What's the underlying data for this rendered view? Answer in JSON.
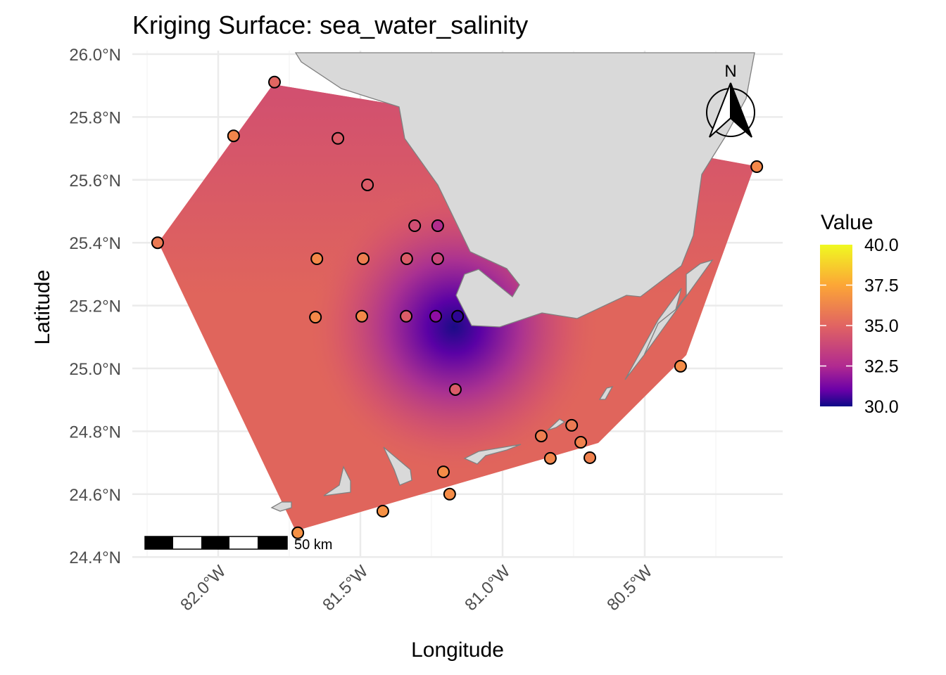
{
  "chart_data": {
    "type": "heatmap",
    "title": "Kriging Surface: sea_water_salinity",
    "xlabel": "Longitude",
    "ylabel": "Latitude",
    "xlim": [
      -82.25,
      -80.02
    ],
    "ylim": [
      24.4,
      26.0
    ],
    "x_ticks": [
      {
        "value": -82.0,
        "label": "82.0°W"
      },
      {
        "value": -81.5,
        "label": "81.5°W"
      },
      {
        "value": -81.0,
        "label": "81.0°W"
      },
      {
        "value": -80.5,
        "label": "80.5°W"
      }
    ],
    "y_ticks": [
      {
        "value": 26.0,
        "label": "26.0°N"
      },
      {
        "value": 25.8,
        "label": "25.8°N"
      },
      {
        "value": 25.6,
        "label": "25.6°N"
      },
      {
        "value": 25.4,
        "label": "25.4°N"
      },
      {
        "value": 25.2,
        "label": "25.2°N"
      },
      {
        "value": 25.0,
        "label": "25.0°N"
      },
      {
        "value": 24.8,
        "label": "24.8°N"
      },
      {
        "value": 24.6,
        "label": "24.6°N"
      },
      {
        "value": 24.4,
        "label": "24.4°N"
      }
    ],
    "grid": true,
    "legend": {
      "title": "Value",
      "position": "right",
      "colormap": "plasma",
      "range": [
        30.0,
        40.0
      ],
      "ticks": [
        "40.0",
        "37.5",
        "35.0",
        "32.5",
        "30.0"
      ]
    },
    "points": [
      {
        "lon": -81.802,
        "lat": 25.911,
        "value": 35.3
      },
      {
        "lon": -81.946,
        "lat": 25.74,
        "value": 36.2
      },
      {
        "lon": -81.579,
        "lat": 25.732,
        "value": 35.0
      },
      {
        "lon": -81.475,
        "lat": 25.584,
        "value": 35.0
      },
      {
        "lon": -82.213,
        "lat": 25.4,
        "value": 35.9
      },
      {
        "lon": -81.309,
        "lat": 25.454,
        "value": 34.6
      },
      {
        "lon": -81.228,
        "lat": 25.454,
        "value": 33.6
      },
      {
        "lon": -81.653,
        "lat": 25.349,
        "value": 36.3
      },
      {
        "lon": -81.49,
        "lat": 25.349,
        "value": 36.0
      },
      {
        "lon": -81.337,
        "lat": 25.349,
        "value": 35.0
      },
      {
        "lon": -81.228,
        "lat": 25.349,
        "value": 34.4
      },
      {
        "lon": -81.658,
        "lat": 25.163,
        "value": 36.3
      },
      {
        "lon": -81.495,
        "lat": 25.166,
        "value": 36.3
      },
      {
        "lon": -81.339,
        "lat": 25.166,
        "value": 35.0
      },
      {
        "lon": -81.235,
        "lat": 25.166,
        "value": 32.6
      },
      {
        "lon": -81.158,
        "lat": 25.166,
        "value": 30.6
      },
      {
        "lon": -81.166,
        "lat": 24.933,
        "value": 35.0
      },
      {
        "lon": -80.374,
        "lat": 25.007,
        "value": 36.4
      },
      {
        "lon": -80.106,
        "lat": 25.642,
        "value": 36.3
      },
      {
        "lon": -80.864,
        "lat": 24.785,
        "value": 36.0
      },
      {
        "lon": -80.757,
        "lat": 24.819,
        "value": 35.9
      },
      {
        "lon": -80.725,
        "lat": 24.765,
        "value": 36.1
      },
      {
        "lon": -80.832,
        "lat": 24.714,
        "value": 36.2
      },
      {
        "lon": -80.693,
        "lat": 24.716,
        "value": 36.1
      },
      {
        "lon": -81.208,
        "lat": 24.671,
        "value": 36.4
      },
      {
        "lon": -81.186,
        "lat": 24.6,
        "value": 36.4
      },
      {
        "lon": -81.421,
        "lat": 24.546,
        "value": 36.5
      },
      {
        "lon": -81.72,
        "lat": 24.477,
        "value": 36.5
      }
    ]
  },
  "north_arrow": {
    "label": "N"
  },
  "scale_bar": {
    "label": "50 km"
  },
  "colors": {
    "land": "#d9d9d9",
    "land_stroke": "#808080",
    "grid": "#ebebeb",
    "surface_base": "#e0655c"
  }
}
